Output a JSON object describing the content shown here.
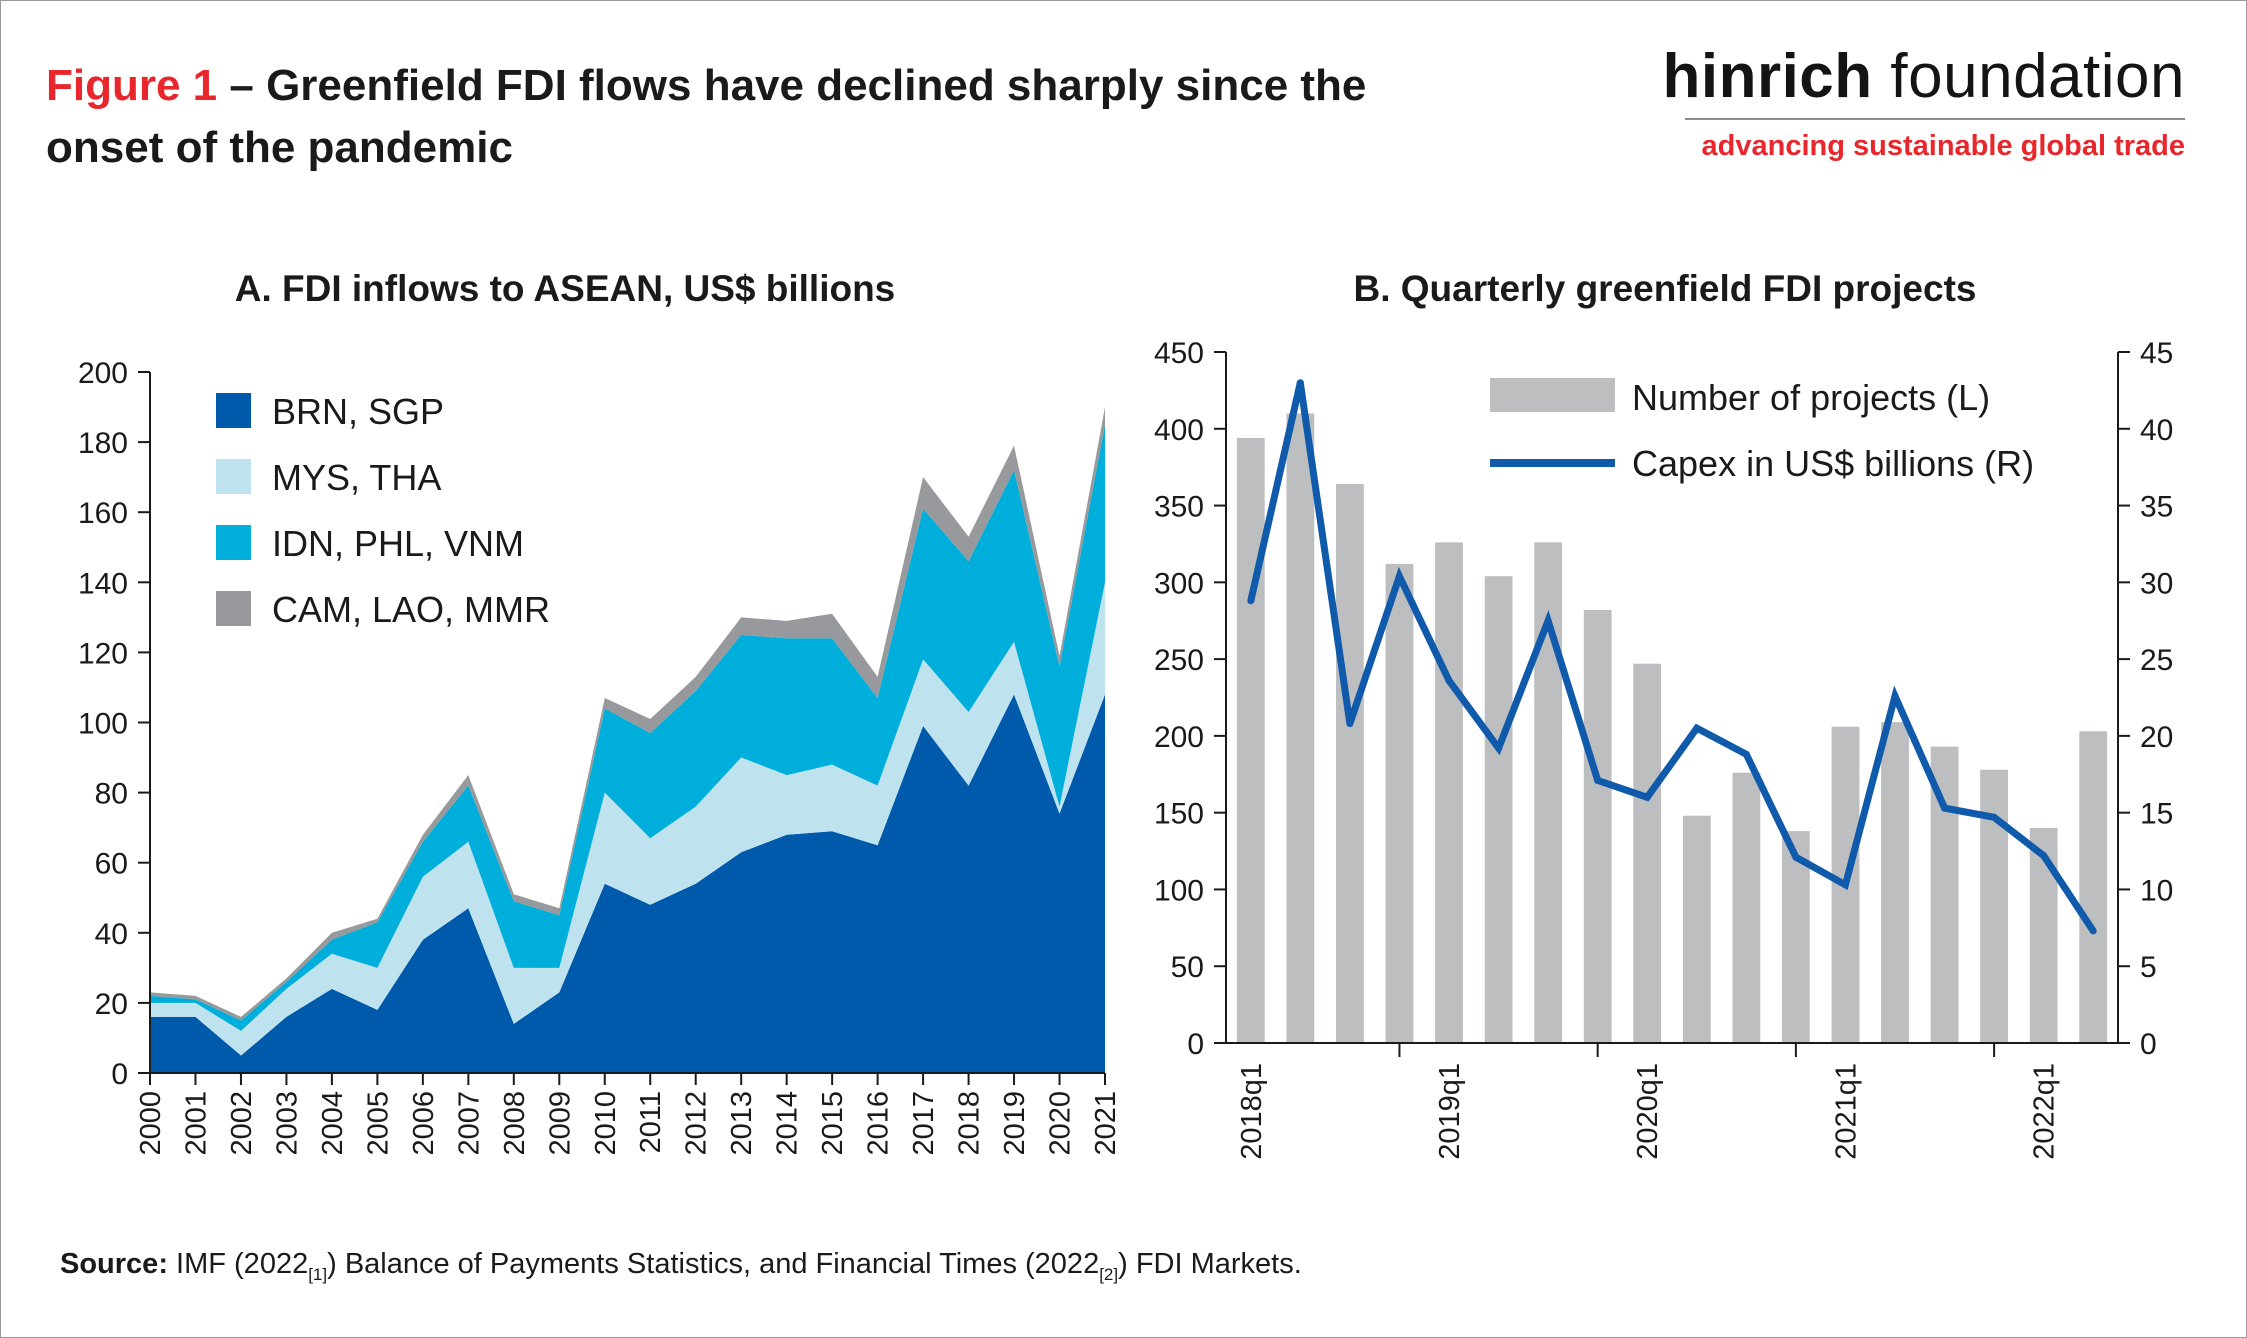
{
  "header": {
    "figure_label": "Figure 1",
    "title": " – Greenfield FDI flows have declined sharply since the onset of the pandemic",
    "logo_brand_bold": "hinrich",
    "logo_brand_light": " foundation",
    "logo_tagline": "advancing sustainable global trade"
  },
  "colors": {
    "figure_label": "#e8262b",
    "brn_sgp": "#005aab",
    "mys_tha": "#bfe2ef",
    "idn_phl_vnm": "#00aedb",
    "cam_lao_mmr": "#97999c",
    "bars": "#bdbec0",
    "capex_line": "#0f5aab"
  },
  "source": {
    "label": "Source:",
    "text_1": " IMF (2022",
    "ref_1": "[1]",
    "text_2": ") Balance of Payments Statistics, and Financial Times (2022",
    "ref_2": "[2]",
    "text_3": ") FDI Markets."
  },
  "chart_data": [
    {
      "type": "area",
      "stacked": true,
      "title": "A. FDI inflows to ASEAN, US$ billions",
      "xlabel": "",
      "ylabel": "",
      "x": [
        "2000",
        "2001",
        "2002",
        "2003",
        "2004",
        "2005",
        "2006",
        "2007",
        "2008",
        "2009",
        "2010",
        "2011",
        "2012",
        "2013",
        "2014",
        "2015",
        "2016",
        "2017",
        "2018",
        "2019",
        "2020",
        "2021"
      ],
      "ylim": [
        0,
        200
      ],
      "yticks": [
        0,
        20,
        40,
        60,
        80,
        100,
        120,
        140,
        160,
        180,
        200
      ],
      "legend_position": "top-left",
      "series": [
        {
          "name": "BRN, SGP",
          "values": [
            16,
            16,
            5,
            16,
            24,
            18,
            38,
            47,
            14,
            23,
            54,
            48,
            54,
            63,
            68,
            69,
            65,
            99,
            82,
            108,
            74,
            108
          ]
        },
        {
          "name": "MYS, THA",
          "values": [
            4,
            4,
            7,
            8,
            10,
            12,
            18,
            19,
            16,
            7,
            26,
            19,
            22,
            27,
            17,
            19,
            17,
            19,
            21,
            15,
            2,
            32
          ]
        },
        {
          "name": "IDN, PHL, VNM",
          "values": [
            2,
            1,
            3,
            2,
            4,
            13,
            10,
            16,
            19,
            15,
            24,
            30,
            33,
            35,
            39,
            36,
            25,
            43,
            43,
            49,
            40,
            45
          ]
        },
        {
          "name": "CAM, LAO, MMR",
          "values": [
            1,
            1,
            1,
            1,
            2,
            1,
            2,
            3,
            2,
            2,
            3,
            4,
            4,
            5,
            5,
            7,
            6,
            9,
            7,
            7,
            3,
            5
          ]
        }
      ]
    },
    {
      "type": "bar",
      "combo_with": "line",
      "title": "B. Quarterly greenfield FDI projects",
      "xlabel": "",
      "categories": [
        "2018q1",
        "2018q2",
        "2018q3",
        "2018q4",
        "2019q1",
        "2019q2",
        "2019q3",
        "2019q4",
        "2020q1",
        "2020q2",
        "2020q3",
        "2020q4",
        "2021q1",
        "2021q2",
        "2021q3",
        "2021q4",
        "2022q1",
        "2022q2"
      ],
      "x_tick_labels": [
        "2018q1",
        "2019q1",
        "2020q1",
        "2021q1",
        "2022q1"
      ],
      "ylim_left": [
        0,
        450
      ],
      "yticks_left": [
        0,
        50,
        100,
        150,
        200,
        250,
        300,
        350,
        400,
        450
      ],
      "ylim_right": [
        0,
        45
      ],
      "yticks_right": [
        0,
        5,
        10,
        15,
        20,
        25,
        30,
        35,
        40,
        45
      ],
      "legend_position": "top-right",
      "series": [
        {
          "name": "Number of projects (L)",
          "type": "bar",
          "axis": "left",
          "values": [
            394,
            410,
            364,
            312,
            326,
            304,
            326,
            282,
            247,
            148,
            176,
            138,
            206,
            209,
            193,
            178,
            140,
            203
          ]
        },
        {
          "name": "Capex in US$ billions (R)",
          "type": "line",
          "axis": "right",
          "values": [
            28.8,
            43.0,
            20.8,
            30.4,
            23.6,
            19.2,
            27.5,
            17.1,
            16.0,
            20.5,
            18.8,
            12.1,
            10.3,
            22.6,
            15.3,
            14.7,
            12.2,
            7.3
          ]
        }
      ]
    }
  ]
}
